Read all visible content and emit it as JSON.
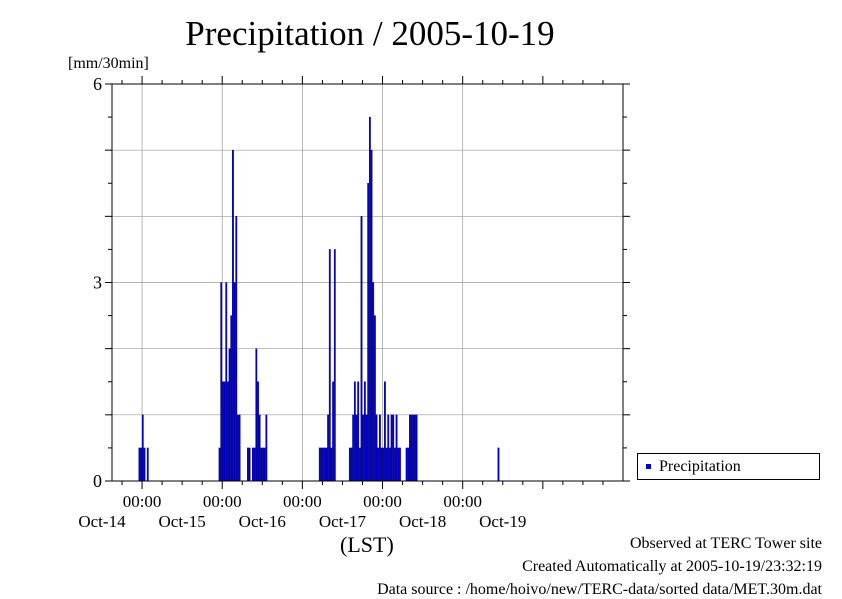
{
  "chart_data": {
    "type": "bar",
    "title": "Precipitation / 2005-10-19",
    "y_unit": "[mm/30min]",
    "xlabel": "(LST)",
    "ylim": [
      0,
      6
    ],
    "y_ticks": [
      0,
      3,
      6
    ],
    "x_range": [
      "2005-10-13 15:00",
      "2005-10-19 24:00"
    ],
    "x_tick_labels": [
      {
        "time": "2005-10-14 00:00",
        "label": "00:00"
      },
      {
        "time": "2005-10-15 00:00",
        "label": "00:00"
      },
      {
        "time": "2005-10-16 00:00",
        "label": "00:00"
      },
      {
        "time": "2005-10-17 00:00",
        "label": "00:00"
      },
      {
        "time": "2005-10-18 00:00",
        "label": "00:00"
      }
    ],
    "x_day_labels": [
      {
        "time": "2005-10-13 12:00",
        "label": "Oct-14"
      },
      {
        "time": "2005-10-14 12:00",
        "label": "Oct-15"
      },
      {
        "time": "2005-10-15 12:00",
        "label": "Oct-16"
      },
      {
        "time": "2005-10-16 12:00",
        "label": "Oct-17"
      },
      {
        "time": "2005-10-17 12:00",
        "label": "Oct-18"
      },
      {
        "time": "2005-10-18 12:00",
        "label": "Oct-19"
      }
    ],
    "grid": true,
    "legend": "right",
    "series": [
      {
        "name": "Precipitation",
        "color": "#0000cc",
        "points": [
          [
            "2005-10-13 23:00",
            0.5
          ],
          [
            "2005-10-13 23:30",
            0.5
          ],
          [
            "2005-10-14 00:00",
            1.0
          ],
          [
            "2005-10-14 00:30",
            0.5
          ],
          [
            "2005-10-14 01:30",
            0.5
          ],
          [
            "2005-10-14 23:00",
            0.5
          ],
          [
            "2005-10-14 23:30",
            3.0
          ],
          [
            "2005-10-15 00:00",
            1.5
          ],
          [
            "2005-10-15 00:30",
            1.5
          ],
          [
            "2005-10-15 01:00",
            3.0
          ],
          [
            "2005-10-15 01:30",
            1.5
          ],
          [
            "2005-10-15 02:00",
            2.0
          ],
          [
            "2005-10-15 02:30",
            2.5
          ],
          [
            "2005-10-15 03:00",
            5.0
          ],
          [
            "2005-10-15 03:30",
            3.0
          ],
          [
            "2005-10-15 04:00",
            4.0
          ],
          [
            "2005-10-15 04:30",
            1.0
          ],
          [
            "2005-10-15 05:00",
            1.0
          ],
          [
            "2005-10-15 07:30",
            0.5
          ],
          [
            "2005-10-15 08:00",
            0.5
          ],
          [
            "2005-10-15 09:00",
            0.5
          ],
          [
            "2005-10-15 09:30",
            0.5
          ],
          [
            "2005-10-15 10:00",
            2.0
          ],
          [
            "2005-10-15 10:30",
            1.5
          ],
          [
            "2005-10-15 11:00",
            1.0
          ],
          [
            "2005-10-15 11:30",
            0.5
          ],
          [
            "2005-10-15 12:00",
            0.5
          ],
          [
            "2005-10-15 12:30",
            0.5
          ],
          [
            "2005-10-15 13:00",
            1.0
          ],
          [
            "2005-10-16 05:00",
            0.5
          ],
          [
            "2005-10-16 05:30",
            0.5
          ],
          [
            "2005-10-16 06:00",
            0.5
          ],
          [
            "2005-10-16 06:30",
            0.5
          ],
          [
            "2005-10-16 07:00",
            0.5
          ],
          [
            "2005-10-16 07:30",
            1.0
          ],
          [
            "2005-10-16 08:00",
            3.5
          ],
          [
            "2005-10-16 08:30",
            0.5
          ],
          [
            "2005-10-16 09:00",
            1.5
          ],
          [
            "2005-10-16 09:30",
            3.5
          ],
          [
            "2005-10-16 14:00",
            0.5
          ],
          [
            "2005-10-16 14:30",
            0.5
          ],
          [
            "2005-10-16 15:00",
            1.0
          ],
          [
            "2005-10-16 15:30",
            1.5
          ],
          [
            "2005-10-16 16:00",
            1.0
          ],
          [
            "2005-10-16 16:30",
            1.5
          ],
          [
            "2005-10-16 17:00",
            0.5
          ],
          [
            "2005-10-16 17:30",
            4.0
          ],
          [
            "2005-10-16 18:00",
            1.0
          ],
          [
            "2005-10-16 18:30",
            1.5
          ],
          [
            "2005-10-16 19:00",
            1.0
          ],
          [
            "2005-10-16 19:30",
            4.5
          ],
          [
            "2005-10-16 20:00",
            5.5
          ],
          [
            "2005-10-16 20:30",
            5.0
          ],
          [
            "2005-10-16 21:00",
            3.0
          ],
          [
            "2005-10-16 21:30",
            2.5
          ],
          [
            "2005-10-16 22:00",
            1.0
          ],
          [
            "2005-10-16 22:30",
            0.5
          ],
          [
            "2005-10-16 23:00",
            1.0
          ],
          [
            "2005-10-16 23:30",
            0.5
          ],
          [
            "2005-10-17 00:00",
            0.5
          ],
          [
            "2005-10-17 00:30",
            1.5
          ],
          [
            "2005-10-17 01:00",
            0.5
          ],
          [
            "2005-10-17 01:30",
            1.0
          ],
          [
            "2005-10-17 02:00",
            0.5
          ],
          [
            "2005-10-17 02:30",
            1.0
          ],
          [
            "2005-10-17 03:00",
            1.0
          ],
          [
            "2005-10-17 03:30",
            0.5
          ],
          [
            "2005-10-17 04:00",
            1.0
          ],
          [
            "2005-10-17 04:30",
            0.5
          ],
          [
            "2005-10-17 05:00",
            0.5
          ],
          [
            "2005-10-17 07:00",
            0.5
          ],
          [
            "2005-10-17 07:30",
            0.5
          ],
          [
            "2005-10-17 08:00",
            1.0
          ],
          [
            "2005-10-17 08:30",
            1.0
          ],
          [
            "2005-10-17 09:00",
            1.0
          ],
          [
            "2005-10-17 09:30",
            1.0
          ],
          [
            "2005-10-17 10:00",
            1.0
          ],
          [
            "2005-10-18 10:30",
            0.5
          ]
        ]
      }
    ]
  },
  "footer": {
    "site": "Observed at TERC Tower site",
    "created": "Created Automatically at 2005-10-19/23:32:19",
    "source": "Data source : /home/hoivo/new/TERC-data/sorted data/MET.30m.dat"
  }
}
